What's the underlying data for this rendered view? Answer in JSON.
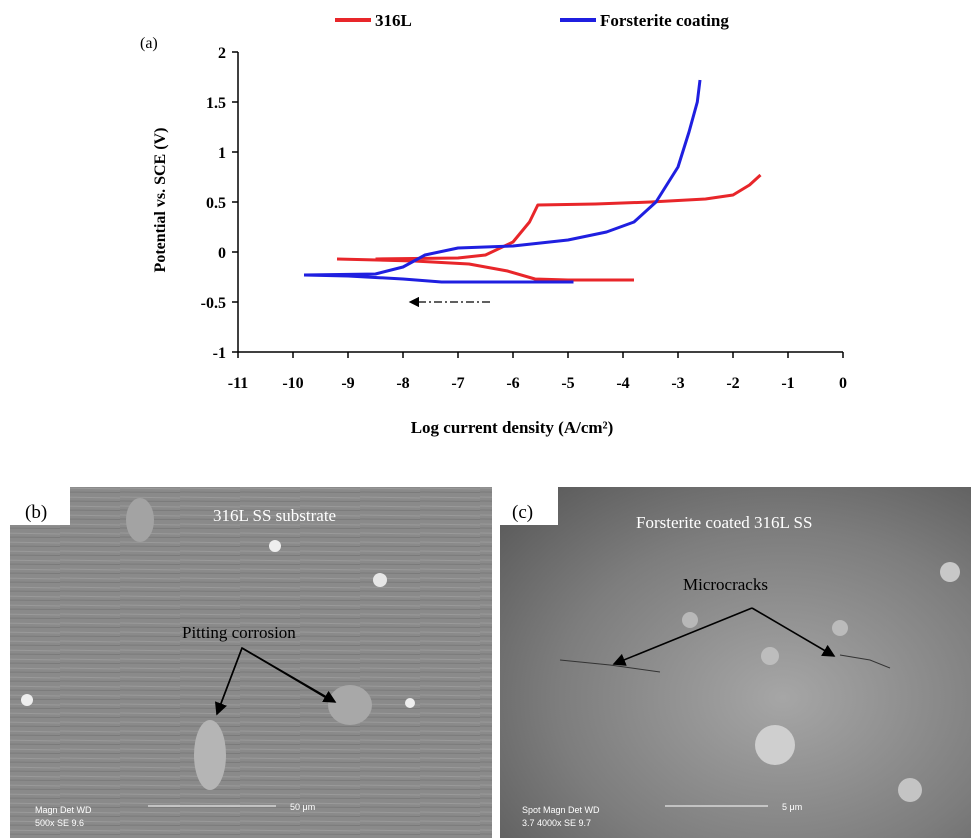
{
  "chart_data": {
    "type": "line",
    "panel_label": "(a)",
    "x_label": "Log current density (A/cm²)",
    "y_label": "Potential vs. SCE (V)",
    "xlim": [
      -11,
      0
    ],
    "xticks": [
      -11,
      -10,
      -9,
      -8,
      -7,
      -6,
      -5,
      -4,
      -3,
      -2,
      -1,
      0
    ],
    "ylim": [
      -1,
      2
    ],
    "yticks": [
      -1,
      -0.5,
      0,
      0.5,
      1,
      1.5,
      2
    ],
    "series": [
      {
        "name": "316L",
        "color": "#e8262a",
        "x": [
          -3.8,
          -5,
          -5.6,
          -6.1,
          -6.8,
          -7.8,
          -9.2,
          null,
          -8.5,
          -7,
          -6.5,
          -6,
          -5.7,
          -5.55,
          -4.5,
          -3.5,
          -2.5,
          -2,
          -1.7,
          -1.5
        ],
        "values": [
          -0.28,
          -0.28,
          -0.27,
          -0.19,
          -0.12,
          -0.09,
          -0.07,
          null,
          -0.07,
          -0.06,
          -0.03,
          0.1,
          0.3,
          0.47,
          0.48,
          0.5,
          0.53,
          0.57,
          0.67,
          0.77
        ]
      },
      {
        "name": "Forsterite coating",
        "color": "#1f1fe0",
        "x": [
          -4.9,
          -6,
          -7.3,
          -8,
          -9,
          -9.8,
          null,
          -9.8,
          -8.5,
          -8,
          -7.6,
          -7,
          -6,
          -5,
          -4.3,
          -3.8,
          -3.4,
          -3,
          -2.8,
          -2.65,
          -2.6
        ],
        "values": [
          -0.3,
          -0.3,
          -0.3,
          -0.27,
          -0.24,
          -0.23,
          null,
          -0.23,
          -0.22,
          -0.15,
          -0.03,
          0.04,
          0.06,
          0.12,
          0.2,
          0.3,
          0.5,
          0.85,
          1.2,
          1.5,
          1.72
        ]
      }
    ]
  },
  "panels": [
    {
      "label": "(b)",
      "caption": "316L SS substrate",
      "annotation": "Pitting corrosion",
      "info_left": "Magn   Det  WD",
      "info_left2": "500x   SE   9.6",
      "scale": "50 μm"
    },
    {
      "label": "(c)",
      "caption": "Forsterite coated 316L SS",
      "annotation": "Microcracks",
      "info_left": "Spot Magn   Det  WD",
      "info_left2": "3.7  4000x   SE   9.7",
      "scale": "5 μm"
    }
  ]
}
